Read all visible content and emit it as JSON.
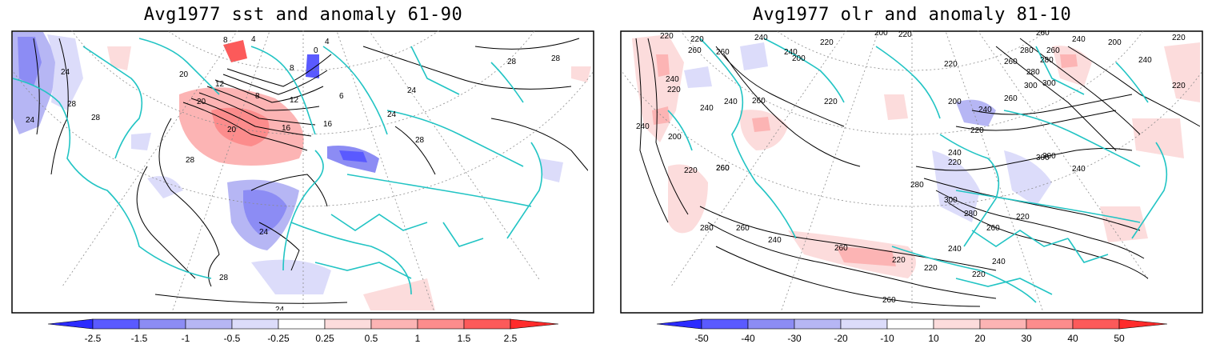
{
  "panels": [
    {
      "title": "Avg1977 sst and anomaly 61-90",
      "colorbar": {
        "labels": [
          "-2.5",
          "-1.5",
          "-1",
          "-0.5",
          "-0.25",
          "0.25",
          "0.5",
          "1",
          "1.5",
          "2.5"
        ]
      },
      "contour_labels": [
        "28",
        "28",
        "28",
        "28",
        "28",
        "28",
        "28",
        "24",
        "24",
        "24",
        "24",
        "24",
        "24",
        "20",
        "20",
        "20",
        "16",
        "16",
        "12",
        "12",
        "8",
        "8",
        "8",
        "4",
        "0",
        "4",
        "6"
      ]
    },
    {
      "title": "Avg1977 olr and anomaly 81-10",
      "colorbar": {
        "labels": [
          "-50",
          "-40",
          "-30",
          "-20",
          "-10",
          "10",
          "20",
          "30",
          "40",
          "50"
        ]
      },
      "contour_labels": [
        "220",
        "220",
        "240",
        "220",
        "200",
        "220",
        "260",
        "240",
        "260",
        "280",
        "260",
        "300",
        "240",
        "200",
        "220",
        "240",
        "240",
        "260",
        "220",
        "200",
        "240",
        "220",
        "260",
        "280",
        "300",
        "280",
        "260",
        "240",
        "220",
        "200",
        "260",
        "220",
        "240",
        "260",
        "300",
        "240",
        "280",
        "300",
        "280",
        "260",
        "220",
        "220",
        "240",
        "220",
        "200",
        "240",
        "220",
        "260",
        "260",
        "240",
        "280",
        "260",
        "220",
        "220",
        "240",
        "220",
        "300",
        "260",
        "240"
      ]
    }
  ],
  "colors": {
    "coast": "#22c4c4",
    "contour": "#000000",
    "graticule": "#8c8c8c",
    "blue_scale": [
      "#2b2bff",
      "#5a5aff",
      "#8c8cf4",
      "#b6b6f4",
      "#dcdcfa"
    ],
    "red_scale": [
      "#fcdcdc",
      "#fcb4b4",
      "#fc8c8c",
      "#fc5a5a",
      "#ff2b2b"
    ]
  }
}
